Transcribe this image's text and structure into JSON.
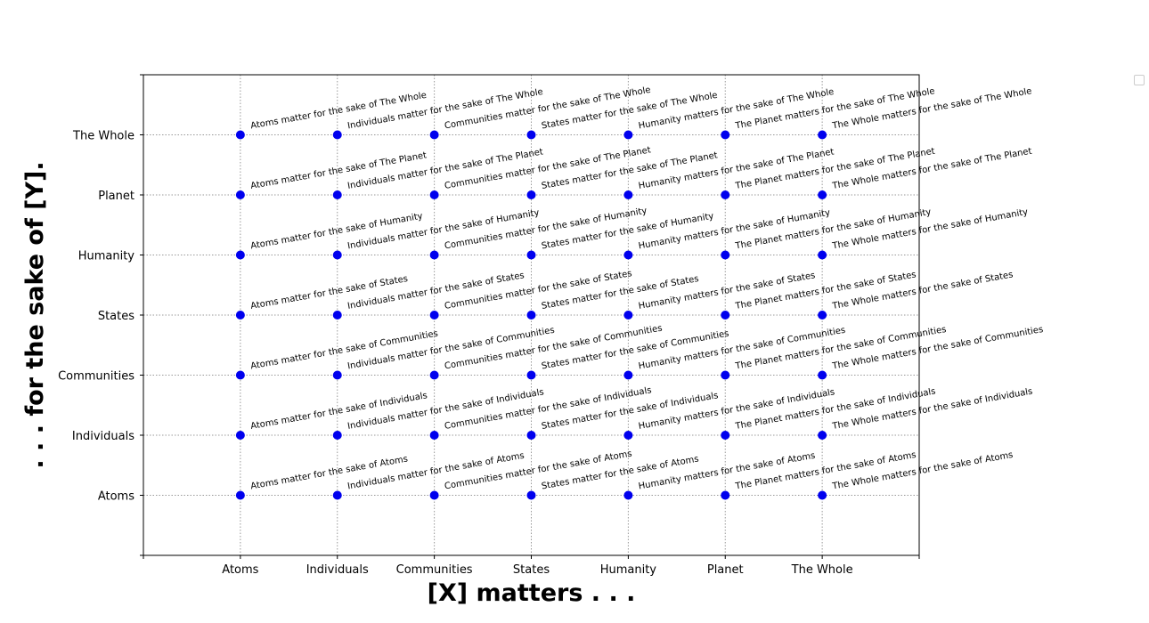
{
  "chart_data": {
    "type": "scatter",
    "title": "",
    "xlabel": "[X] matters . . .",
    "ylabel": ". . . for the sake of [Y].",
    "categories": [
      "Atoms",
      "Individuals",
      "Communities",
      "States",
      "Humanity",
      "Planet",
      "The Whole"
    ],
    "xlim": [
      -1,
      7
    ],
    "ylim": [
      -1,
      7
    ],
    "grid": true,
    "legend": "top-right",
    "point_color": "#0000ee",
    "annotations": [
      [
        "Atoms matter for the sake of Atoms",
        "Atoms matter for the sake of Individuals",
        "Atoms matter for the sake of Communities",
        "Atoms matter for the sake of States",
        "Atoms matter for the sake of Humanity",
        "Atoms matter for the sake of The Planet",
        "Atoms matter for the sake of The Whole"
      ],
      [
        "Individuals matter for the sake of Atoms",
        "Individuals matter for the sake of Individuals",
        "Individuals matter for the sake of Communities",
        "Individuals matter for the sake of States",
        "Individuals matter for the sake of Humanity",
        "Individuals matter for the sake of The Planet",
        "Individuals matter for the sake of The Whole"
      ],
      [
        "Communities matter for the sake of Atoms",
        "Communities matter for the sake of Individuals",
        "Communities matter for the sake of Communities",
        "Communities matter for the sake of States",
        "Communities matter for the sake of Humanity",
        "Communities matter for the sake of The Planet",
        "Communities matter for the sake of The Whole"
      ],
      [
        "States matter for the sake of Atoms",
        "States matter for the sake of Individuals",
        "States matter for the sake of Communities",
        "States matter for the sake of States",
        "States matter for the sake of Humanity",
        "States matter for the sake of The Planet",
        "States matter for the sake of The Whole"
      ],
      [
        "Humanity matters for the sake of Atoms",
        "Humanity matters for the sake of Individuals",
        "Humanity matters for the sake of Communities",
        "Humanity matters for the sake of States",
        "Humanity matters for the sake of Humanity",
        "Humanity matters for the sake of The Planet",
        "Humanity matters for the sake of The Whole"
      ],
      [
        "The Planet matters for the sake of Atoms",
        "The Planet matters for the sake of Individuals",
        "The Planet matters for the sake of Communities",
        "The Planet matters for the sake of States",
        "The Planet matters for the sake of Humanity",
        "The Planet matters for the sake of The Planet",
        "The Planet matters for the sake of The Whole"
      ],
      [
        "The Whole matters for the sake of Atoms",
        "The Whole matters for the sake of Individuals",
        "The Whole matters for the sake of Communities",
        "The Whole matters for the sake of States",
        "The Whole matters for the sake of Humanity",
        "The Whole matters for the sake of The Planet",
        "The Whole matters for the sake of The Whole"
      ]
    ]
  }
}
